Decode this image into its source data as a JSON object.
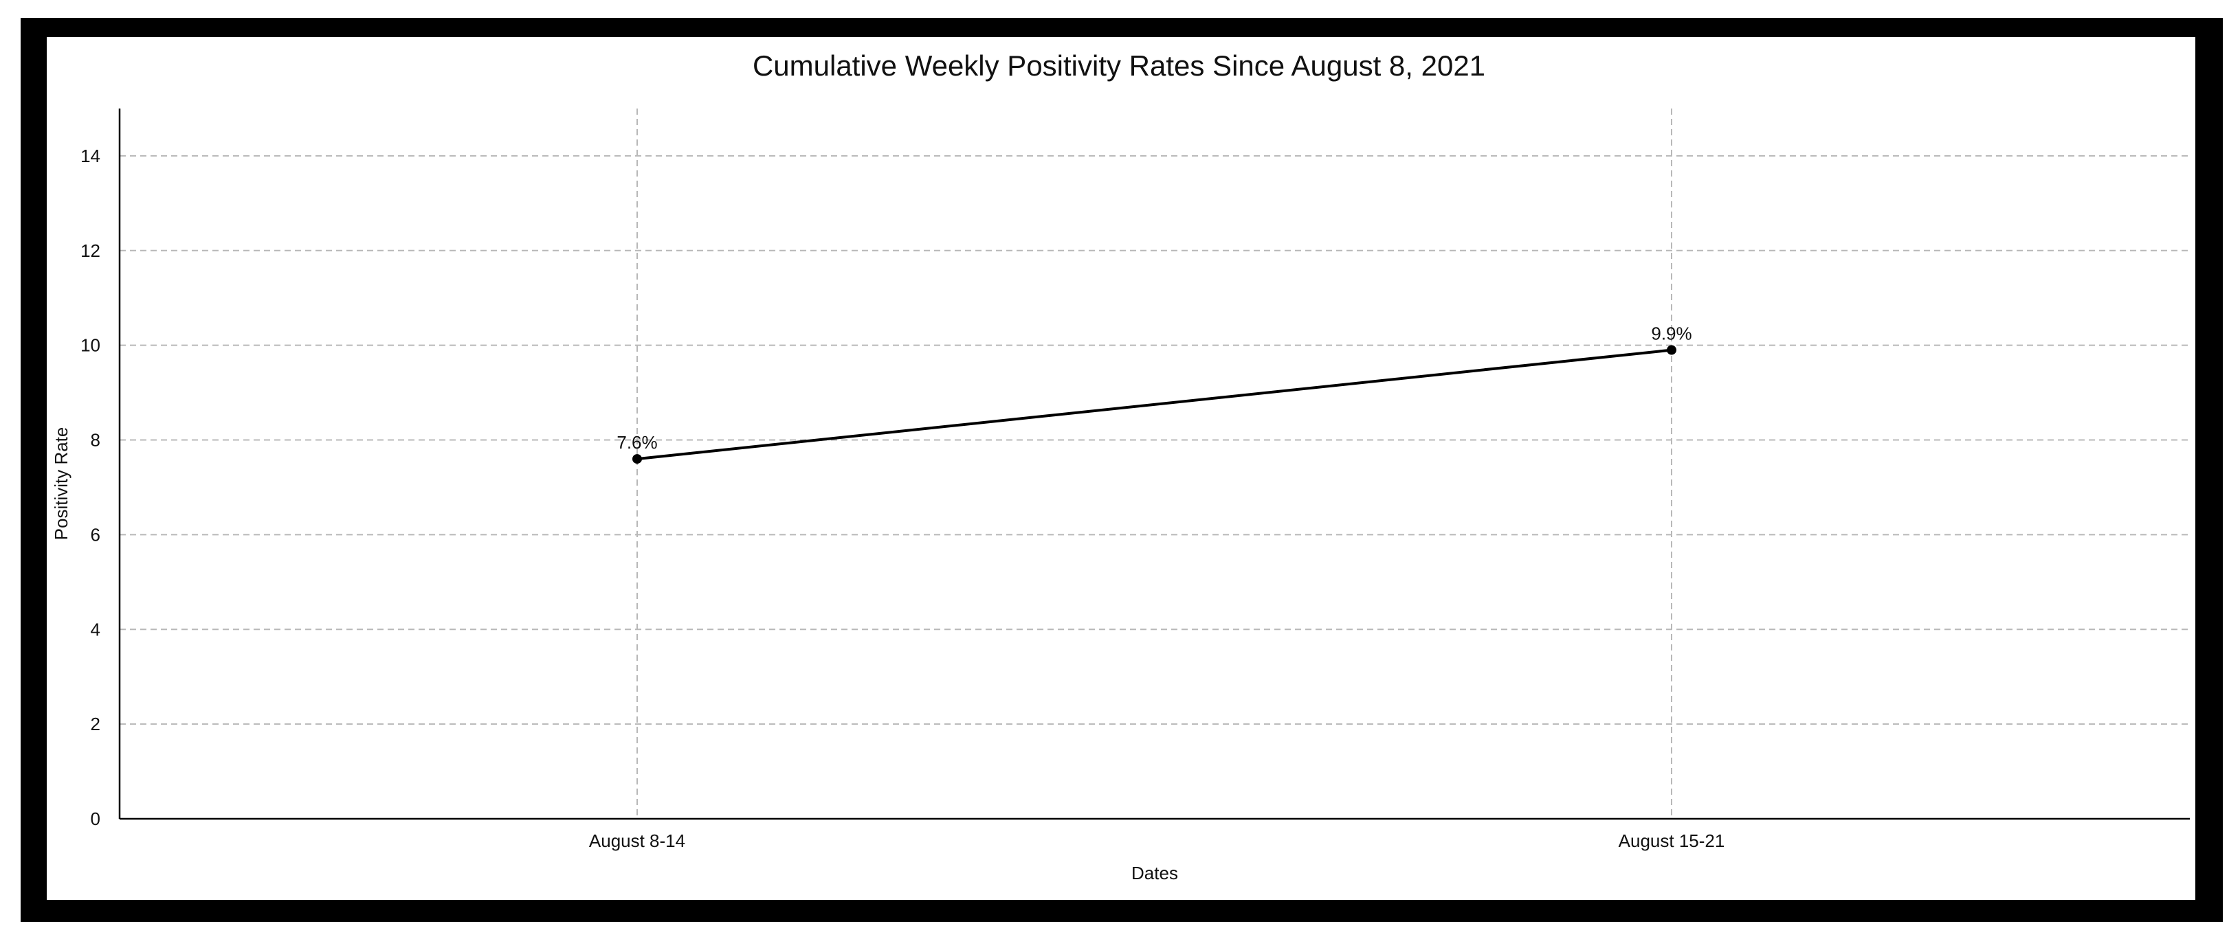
{
  "chart_data": {
    "type": "line",
    "title": "Cumulative Weekly Positivity Rates Since August 8, 2021",
    "xlabel": "Dates",
    "ylabel": "Positivity Rate",
    "categories": [
      "August 8-14",
      "August 15-21"
    ],
    "series": [
      {
        "values": [
          7.6,
          9.9
        ],
        "data_labels": [
          "7.6%",
          "9.9%"
        ],
        "color": "#000000"
      }
    ],
    "ylim": [
      0,
      15
    ],
    "yticks": [
      0,
      2,
      4,
      6,
      8,
      10,
      12,
      14
    ],
    "ytick_labels": [
      "0",
      "2",
      "4",
      "6",
      "8",
      "10",
      "12",
      "14"
    ],
    "grid": true,
    "grid_style": "dashed",
    "legend": "none",
    "colors": {
      "frame": "#000000",
      "background": "#ffffff",
      "grid": "#b8b8b8",
      "line": "#000000"
    }
  }
}
